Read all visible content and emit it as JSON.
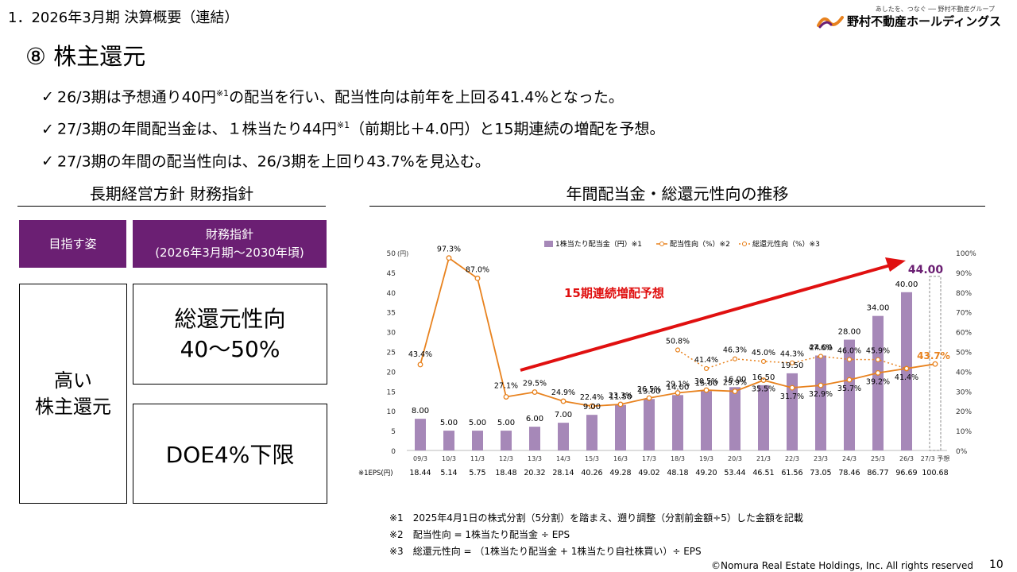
{
  "header": {
    "section": "1．2026年3月期 決算概要（連結）",
    "title": "⑧ 株主還元",
    "logo_tagline": "あしたを、つなぐ ── 野村不動産グループ",
    "logo_name": "野村不動産ホールディングス"
  },
  "bullets": [
    {
      "pre": "26/3期は予想通り40円",
      "sup": "※1",
      "post": "の配当を行い、配当性向は前年を上回る41.4%となった。"
    },
    {
      "pre": "27/3期の年間配当金は、１株当たり44円",
      "sup": "※1",
      "post": "（前期比＋4.0円）と15期連続の増配を予想。"
    },
    {
      "pre": "27/3期の年間の配当性向は、26/3期を上回り43.7%を見込む。",
      "sup": "",
      "post": ""
    }
  ],
  "policy": {
    "heading": "長期経営方針 財務指針",
    "col1_header": "目指す姿",
    "col2_header_line1": "財務指針",
    "col2_header_line2": "(2026年3月期～2030年頃)",
    "goal_line1": "高い",
    "goal_line2": "株主還元",
    "target1_line1": "総還元性向",
    "target1_line2": "40～50%",
    "target2": "DOE4%下限"
  },
  "chart_data": {
    "type": "bar",
    "title": "年間配当金・総還元性向の推移",
    "annotation": "15期連続増配予想",
    "forecast_label": "44.00",
    "forecast_ratio_label": "43.7%",
    "legend": [
      "1株当たり配当金（円）※1",
      "配当性向（%）※2",
      "総還元性向（%）※3"
    ],
    "yleft_unit": "(円)",
    "yleft_ticks": [
      "0",
      "5",
      "10",
      "15",
      "20",
      "25",
      "30",
      "35",
      "40",
      "45",
      "50"
    ],
    "yright_ticks": [
      "0%",
      "10%",
      "20%",
      "30%",
      "40%",
      "50%",
      "60%",
      "70%",
      "80%",
      "90%",
      "100%"
    ],
    "ylim_left": [
      0,
      50
    ],
    "ylim_right": [
      0,
      100
    ],
    "categories": [
      "09/3",
      "10/3",
      "11/3",
      "12/3",
      "13/3",
      "14/3",
      "15/3",
      "16/3",
      "17/3",
      "18/3",
      "19/3",
      "20/3",
      "21/3",
      "22/3",
      "23/3",
      "24/3",
      "25/3",
      "26/3",
      "27/3 予想"
    ],
    "dividends": [
      8.0,
      5.0,
      5.0,
      5.0,
      6.0,
      7.0,
      9.0,
      11.5,
      13.0,
      14.0,
      15.0,
      16.0,
      16.5,
      19.5,
      24.0,
      28.0,
      34.0,
      40.0,
      44.0
    ],
    "dividend_labels": [
      "8.00",
      "5.00",
      "5.00",
      "5.00",
      "6.00",
      "7.00",
      "9.00",
      "11.50",
      "13.00",
      "14.00",
      "15.00",
      "16.00",
      "16.50",
      "19.50",
      "24.00",
      "28.00",
      "34.00",
      "40.00",
      ""
    ],
    "payout_ratio": [
      43.4,
      97.3,
      87.0,
      27.1,
      29.5,
      24.9,
      22.4,
      23.3,
      26.5,
      29.1,
      30.5,
      29.9,
      35.5,
      31.7,
      32.9,
      35.7,
      39.2,
      41.4,
      43.7
    ],
    "payout_labels": [
      "43.4%",
      "97.3%",
      "87.0%",
      "27.1%",
      "29.5%",
      "24.9%",
      "22.4%",
      "23.3%",
      "26.5%",
      "29.1%",
      "30.5%",
      "29.9%",
      "35.5%",
      "31.7%",
      "32.9%",
      "35.7%",
      "39.2%",
      "41.4%",
      ""
    ],
    "total_return_ratio": [
      null,
      null,
      null,
      null,
      null,
      null,
      null,
      null,
      null,
      50.8,
      41.4,
      46.3,
      45.0,
      44.3,
      47.6,
      46.0,
      45.9,
      41.4,
      null
    ],
    "total_return_labels": [
      "",
      "",
      "",
      "",
      "",
      "",
      "",
      "",
      "",
      "50.8%",
      "41.4%",
      "46.3%",
      "45.0%",
      "44.3%",
      "47.6%",
      "46.0%",
      "45.9%",
      "",
      ""
    ],
    "eps_label": "※1EPS(円)",
    "eps": [
      "18.44",
      "5.14",
      "5.75",
      "18.48",
      "20.32",
      "28.14",
      "40.26",
      "49.28",
      "49.02",
      "48.18",
      "49.20",
      "53.44",
      "46.51",
      "61.56",
      "73.05",
      "78.46",
      "86.77",
      "96.69",
      "100.68"
    ],
    "colors": {
      "bar": "#a688b8",
      "payout": "#e8821e",
      "total_return": "#e8821e",
      "arrow": "#e01010",
      "annotation": "#e01010",
      "forecast_label": "#6b1f73",
      "forecast_ratio": "#e8821e"
    }
  },
  "notes": [
    "※1　2025年4月1日の株式分割（5分割）を踏まえ、遡り調整（分割前金額÷5）した金額を記載",
    "※2　配当性向 = 1株当たり配当金 ÷ EPS",
    "※3　総還元性向 = （1株当たり配当金 + 1株当たり自社株買い）÷ EPS"
  ],
  "footer": {
    "copyright": "©Nomura Real Estate Holdings, Inc. All rights reserved",
    "page": "10"
  }
}
